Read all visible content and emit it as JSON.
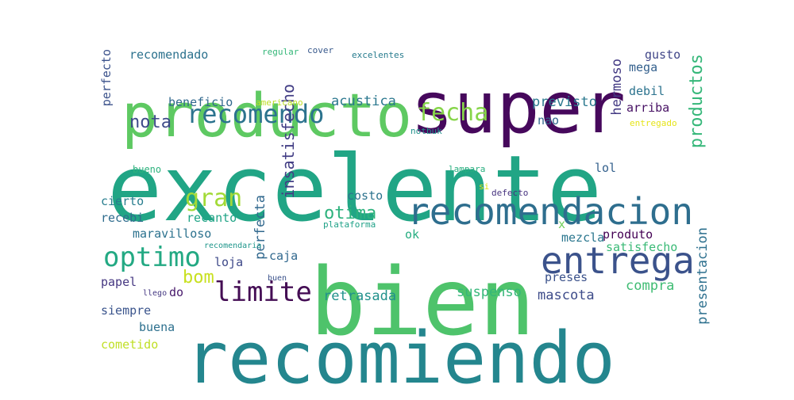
{
  "words": [
    {
      "text": "excelente",
      "color": "#21a585",
      "vertical": false
    },
    {
      "text": "bien",
      "color": "#4ec36b",
      "vertical": false
    },
    {
      "text": "recomiendo",
      "color": "#24868e",
      "vertical": false
    },
    {
      "text": "super",
      "color": "#46085c",
      "vertical": false
    },
    {
      "text": "producto",
      "color": "#5ec962",
      "vertical": false
    },
    {
      "text": "recomendacion",
      "color": "#2e6e8e",
      "vertical": false
    },
    {
      "text": "entrega",
      "color": "#3b528b",
      "vertical": false
    },
    {
      "text": "limite",
      "color": "#440d54",
      "vertical": false
    },
    {
      "text": "optimo",
      "color": "#23a983",
      "vertical": false
    },
    {
      "text": "recomendo",
      "color": "#2c738e",
      "vertical": false
    },
    {
      "text": "fecha",
      "color": "#86d549",
      "vertical": false
    },
    {
      "text": "gran",
      "color": "#a2da37",
      "vertical": false
    },
    {
      "text": "productos",
      "color": "#35b779",
      "vertical": true
    },
    {
      "text": "nota",
      "color": "#3e4a89",
      "vertical": false
    },
    {
      "text": "bom",
      "color": "#c8e020",
      "vertical": false
    },
    {
      "text": "otima",
      "color": "#2db27d",
      "vertical": false
    },
    {
      "text": "insatisfecho",
      "color": "#433e85",
      "vertical": true
    },
    {
      "text": "mascota",
      "color": "#3e4c8a",
      "vertical": false
    },
    {
      "text": "compra",
      "color": "#3fbc73",
      "vertical": false
    },
    {
      "text": "presentacion",
      "color": "#2d708e",
      "vertical": true
    },
    {
      "text": "perfecta",
      "color": "#31688e",
      "vertical": true
    },
    {
      "text": "retrasada",
      "color": "#21918c",
      "vertical": false
    },
    {
      "text": "suspenso",
      "color": "#35b779",
      "vertical": false
    },
    {
      "text": "hermoso",
      "color": "#443b84",
      "vertical": true
    },
    {
      "text": "previsto",
      "color": "#2a788e",
      "vertical": false
    },
    {
      "text": "acustica",
      "color": "#2a778e",
      "vertical": false
    },
    {
      "text": "beneficio",
      "color": "#31688e",
      "vertical": false
    },
    {
      "text": "recomendado",
      "color": "#2c728e",
      "vertical": false
    },
    {
      "text": "perfecto",
      "color": "#3b528b",
      "vertical": true
    },
    {
      "text": "maravilloso",
      "color": "#2c728e",
      "vertical": false
    },
    {
      "text": "cierto",
      "color": "#287d8e",
      "vertical": false
    },
    {
      "text": "recebi",
      "color": "#2f6c8e",
      "vertical": false
    },
    {
      "text": "recanto",
      "color": "#20a486",
      "vertical": false
    },
    {
      "text": "costo",
      "color": "#2c738e",
      "vertical": false
    },
    {
      "text": "caja",
      "color": "#31688e",
      "vertical": false
    },
    {
      "text": "loja",
      "color": "#3e4989",
      "vertical": false
    },
    {
      "text": "papel",
      "color": "#453781",
      "vertical": false
    },
    {
      "text": "siempre",
      "color": "#3a548c",
      "vertical": false
    },
    {
      "text": "buena",
      "color": "#2d708e",
      "vertical": false
    },
    {
      "text": "cometido",
      "color": "#c0df25",
      "vertical": false
    },
    {
      "text": "do",
      "color": "#481a6c",
      "vertical": false
    },
    {
      "text": "produto",
      "color": "#440154",
      "vertical": false
    },
    {
      "text": "satisfecho",
      "color": "#3aba76",
      "vertical": false
    },
    {
      "text": "mezcla",
      "color": "#2a768e",
      "vertical": false
    },
    {
      "text": "preses",
      "color": "#3b528b",
      "vertical": false
    },
    {
      "text": "ok",
      "color": "#26ad81",
      "vertical": false
    },
    {
      "text": "x",
      "color": "#6ece58",
      "vertical": false
    },
    {
      "text": "lol",
      "color": "#34618d",
      "vertical": false
    },
    {
      "text": "arriba",
      "color": "#471164",
      "vertical": false
    },
    {
      "text": "debil",
      "color": "#2c738e",
      "vertical": false
    },
    {
      "text": "mega",
      "color": "#34608d",
      "vertical": false
    },
    {
      "text": "gusto",
      "color": "#404688",
      "vertical": false
    },
    {
      "text": "nao",
      "color": "#31678e",
      "vertical": false
    },
    {
      "text": "bueno",
      "color": "#2db27d",
      "vertical": false
    },
    {
      "text": "regular",
      "color": "#35b779",
      "vertical": false
    },
    {
      "text": "cover",
      "color": "#38598c",
      "vertical": false
    },
    {
      "text": "excelentes",
      "color": "#287c8e",
      "vertical": false
    },
    {
      "text": "americano",
      "color": "#bddf26",
      "vertical": false
    },
    {
      "text": "notbuk",
      "color": "#21918c",
      "vertical": false
    },
    {
      "text": "entregado",
      "color": "#e5e419",
      "vertical": false
    },
    {
      "text": "lampara",
      "color": "#29af7f",
      "vertical": false
    },
    {
      "text": "si",
      "color": "#e2e418",
      "vertical": false
    },
    {
      "text": "defecto",
      "color": "#46337f",
      "vertical": false
    },
    {
      "text": "plataforma",
      "color": "#1fa187",
      "vertical": false
    },
    {
      "text": "recomendaria",
      "color": "#1f968b",
      "vertical": false
    },
    {
      "text": "buen",
      "color": "#3b528b",
      "vertical": false
    },
    {
      "text": "llego",
      "color": "#453882",
      "vertical": false
    }
  ]
}
